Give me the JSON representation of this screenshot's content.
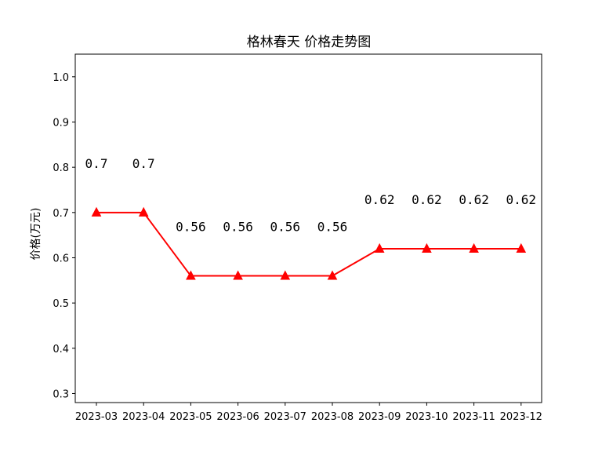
{
  "chart_data": {
    "type": "line",
    "title": "格林春天 价格走势图",
    "xlabel": "",
    "ylabel": "价格(万元)",
    "categories": [
      "2023-03",
      "2023-04",
      "2023-05",
      "2023-06",
      "2023-07",
      "2023-08",
      "2023-09",
      "2023-10",
      "2023-11",
      "2023-12"
    ],
    "series": [
      {
        "values": [
          0.7,
          0.7,
          0.56,
          0.56,
          0.56,
          0.56,
          0.62,
          0.62,
          0.62,
          0.62
        ],
        "labels": [
          "0.7",
          "0.7",
          "0.56",
          "0.56",
          "0.56",
          "0.56",
          "0.62",
          "0.62",
          "0.62",
          "0.62"
        ],
        "color": "#ff0000",
        "marker": "triangle-up"
      }
    ],
    "ylim": [
      0.28,
      1.05
    ],
    "yticks": [
      0.3,
      0.4,
      0.5,
      0.6,
      0.7,
      0.8,
      0.9,
      1.0
    ],
    "ytick_labels": [
      "0.3",
      "0.4",
      "0.5",
      "0.6",
      "0.7",
      "0.8",
      "0.9",
      "1.0"
    ],
    "grid": false,
    "legend": "none"
  }
}
